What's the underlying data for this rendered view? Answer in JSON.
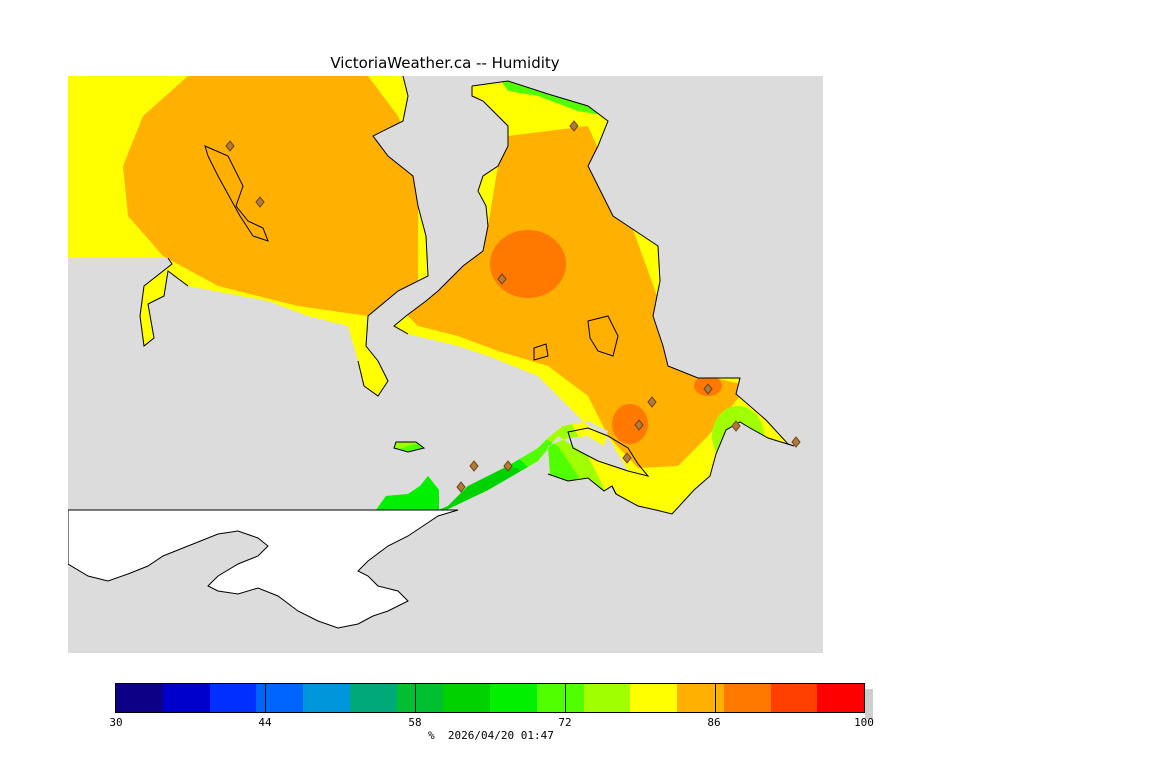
{
  "title": "VictoriaWeather.ca -- Humidity",
  "legend": {
    "ticks": [
      "30",
      "44",
      "58",
      "72",
      "86",
      "100"
    ],
    "unit": "%",
    "timestamp": "2026/04/20 01:47",
    "colors": [
      "#0d0087",
      "#0000cc",
      "#0030ff",
      "#0064ff",
      "#0096dc",
      "#00aa78",
      "#00c032",
      "#00d200",
      "#00f000",
      "#50ff00",
      "#a0ff00",
      "#ffff00",
      "#ffb000",
      "#ff7800",
      "#ff4000",
      "#ff0000"
    ]
  },
  "map": {
    "land_color": "#ffffff",
    "water_color": "#dcdcdc",
    "coastline_color": "#000000",
    "station_marker": "diamond"
  }
}
